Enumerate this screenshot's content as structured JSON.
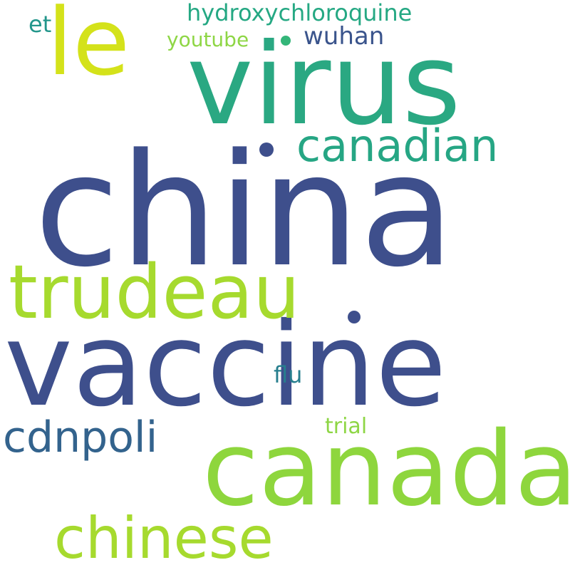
{
  "words": {
    "china": {
      "text": "china",
      "color": "#3e4f8c"
    },
    "vaccine": {
      "text": "vaccine",
      "color": "#3e4f8c"
    },
    "virus": {
      "text": "virus",
      "color": "#2aa882"
    },
    "canada": {
      "text": "canada",
      "color": "#8ed63d"
    },
    "le": {
      "text": "le",
      "color": "#d4e21a"
    },
    "trudeau": {
      "text": "trudeau",
      "color": "#a6da2e"
    },
    "canadian": {
      "text": "canadian",
      "color": "#26a684"
    },
    "chinese": {
      "text": "chinese",
      "color": "#a6da2e"
    },
    "cdnpoli": {
      "text": "cdnpoli",
      "color": "#33638d"
    },
    "hydroxychloroquine": {
      "text": "hydroxychloroquine",
      "color": "#25a883"
    },
    "wuhan": {
      "text": "wuhan",
      "color": "#3a548c"
    },
    "youtube": {
      "text": "youtube",
      "color": "#8ed645"
    },
    "et": {
      "text": "et",
      "color": "#23968b"
    },
    "flu": {
      "text": "flu",
      "color": "#277f8e"
    },
    "trial": {
      "text": "trial",
      "color": "#8ed645"
    },
    "dot_top": {
      "text": ".",
      "color": "#34b679"
    },
    "dot_china": {
      "text": ".",
      "color": "#3e4f8c"
    },
    "dot_trudeau": {
      "text": ".",
      "color": "#3e4f8c"
    }
  }
}
